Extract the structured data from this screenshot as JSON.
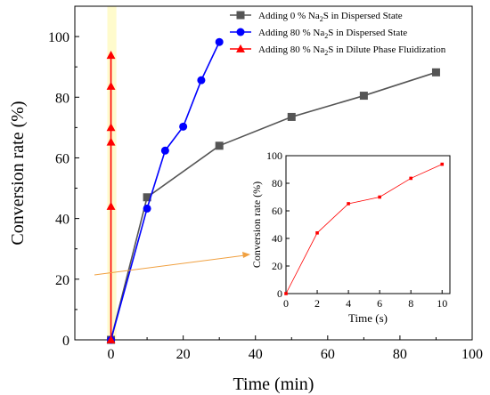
{
  "chart_data": [
    {
      "type": "line",
      "xlabel": "Time (min)",
      "ylabel": "Conversion rate (%)",
      "xlim": [
        -10,
        100
      ],
      "ylim": [
        0,
        110
      ],
      "x_ticks": [
        0,
        20,
        40,
        60,
        80,
        100
      ],
      "y_ticks": [
        0,
        20,
        40,
        60,
        80,
        100
      ],
      "x_tick_labels": [
        "0",
        "20",
        "40",
        "60",
        "80",
        "100"
      ],
      "y_tick_labels": [
        "0",
        "20",
        "40",
        "60",
        "80",
        "100"
      ],
      "highlight_band_x": [
        -1,
        1.5
      ],
      "highlight_color": "#fffbcc",
      "legend_position": "top-right",
      "series": [
        {
          "name": "Adding 0 % Na2S in Dispersed State",
          "legend_parts": [
            "Adding 0 % Na",
            "2",
            "S in Dispersed State"
          ],
          "color": "#555555",
          "marker": "square",
          "x": [
            0,
            10,
            30,
            50,
            70,
            90
          ],
          "y": [
            0,
            47,
            64,
            73.5,
            80.5,
            88.2
          ]
        },
        {
          "name": "Adding 80 % Na2S in Dispersed State",
          "legend_parts": [
            "Adding 80 % Na",
            "2",
            "S in Dispersed State"
          ],
          "color": "#0000ff",
          "marker": "circle",
          "x": [
            0,
            10,
            15,
            20,
            25,
            30
          ],
          "y": [
            0,
            43.3,
            62.4,
            70.3,
            85.6,
            98.2
          ]
        },
        {
          "name": "Adding 80 % Na2S in Dilute Phase Fluidization",
          "legend_parts": [
            "Adding 80 % Na",
            "2",
            "S in Dilute Phase Fluidization"
          ],
          "color": "#ff0000",
          "marker": "triangle",
          "x": [
            0,
            0,
            0,
            0,
            0,
            0
          ],
          "y": [
            0,
            44,
            65.2,
            70,
            83.6,
            93.8
          ]
        }
      ]
    },
    {
      "type": "line",
      "inset": true,
      "xlabel": "Time (s)",
      "ylabel": "Conversion rate (%)",
      "xlim": [
        0,
        10.5
      ],
      "ylim": [
        0,
        100
      ],
      "x_ticks": [
        0,
        2,
        4,
        6,
        8,
        10
      ],
      "y_ticks": [
        0,
        20,
        40,
        60,
        80,
        100
      ],
      "x_tick_labels": [
        "0",
        "2",
        "4",
        "6",
        "8",
        "10"
      ],
      "y_tick_labels": [
        "0",
        "20",
        "40",
        "60",
        "80",
        "100"
      ],
      "series": [
        {
          "color": "#ff0000",
          "marker": "square",
          "x": [
            0,
            2,
            4,
            6,
            8,
            10
          ],
          "y": [
            0,
            44,
            65.2,
            70,
            83.6,
            93.8
          ]
        }
      ]
    }
  ],
  "arrow_color": "#f0a040"
}
